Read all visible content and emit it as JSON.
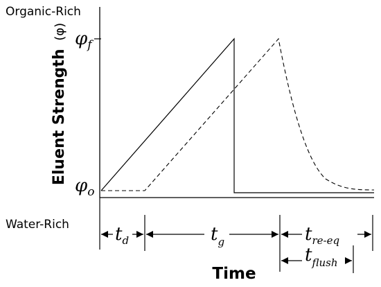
{
  "labels": {
    "top_left": "Organic-Rich",
    "bottom_left": "Water-Rich",
    "y_axis": "Eluent Strength",
    "y_axis_symbol": "(φ)",
    "x_axis": "Time",
    "phi_f_base": "φ",
    "phi_f_sub": "f",
    "phi_o_base": "φ",
    "phi_o_sub": "o"
  },
  "intervals": {
    "td_base": "t",
    "td_sub": "d",
    "tg_base": "t",
    "tg_sub": "g",
    "treeq_base": "t",
    "treeq_sub": "re-eq",
    "tflush_base": "t",
    "tflush_sub": "flush"
  },
  "style": {
    "line_color": "#000000",
    "background": "#ffffff"
  }
}
